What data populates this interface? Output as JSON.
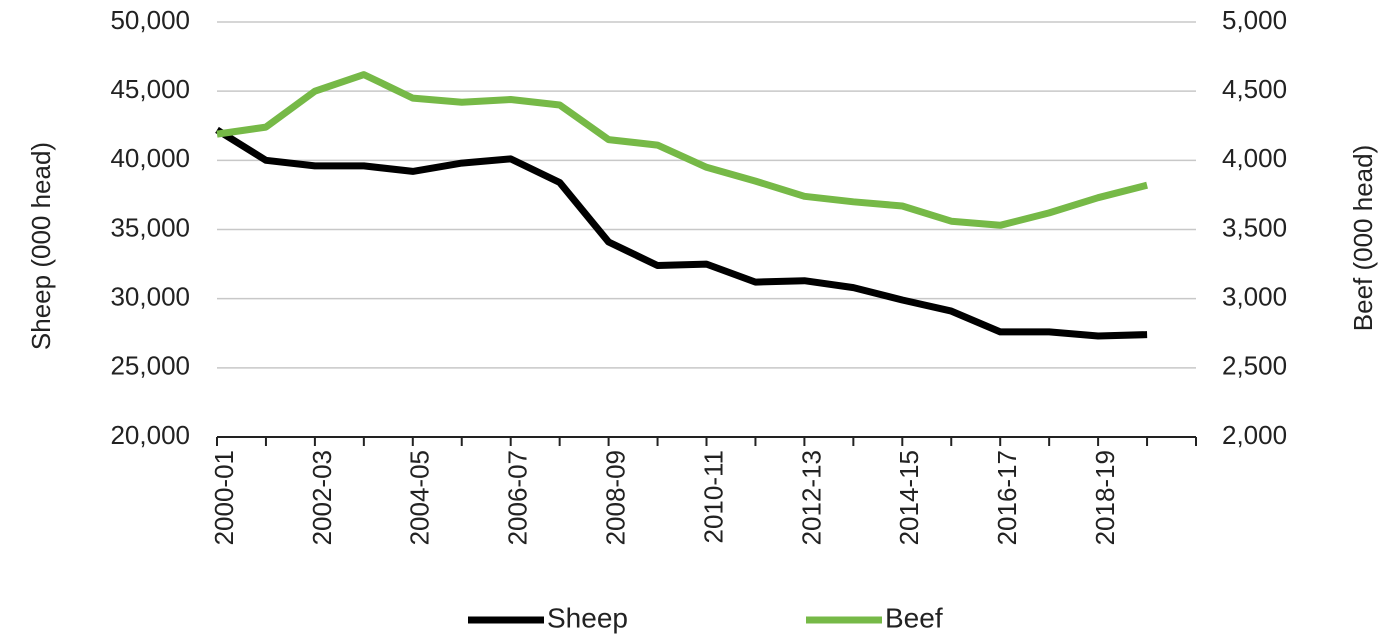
{
  "chart_data": {
    "type": "line",
    "x": [
      "2000-01",
      "2001-02",
      "2002-03",
      "2003-04",
      "2004-05",
      "2005-06",
      "2006-07",
      "2007-08",
      "2008-09",
      "2009-10",
      "2010-11",
      "2011-12",
      "2012-13",
      "2013-14",
      "2014-15",
      "2015-16",
      "2016-17",
      "2017-18",
      "2018-19",
      "2019-20"
    ],
    "x_tick_labels": [
      "2000-01",
      "2002-03",
      "2004-05",
      "2006-07",
      "2008-09",
      "2010-11",
      "2012-13",
      "2014-15",
      "2016-17",
      "2018-19"
    ],
    "series": [
      {
        "name": "Sheep",
        "axis": "left",
        "color": "#000000",
        "values": [
          42200,
          40000,
          39600,
          39600,
          39200,
          39800,
          40100,
          38400,
          34100,
          32400,
          32500,
          31200,
          31300,
          30800,
          29900,
          29100,
          27600,
          27600,
          27300,
          27400
        ]
      },
      {
        "name": "Beef",
        "axis": "right",
        "color": "#76b947",
        "values": [
          4190,
          4240,
          4500,
          4620,
          4450,
          4420,
          4440,
          4400,
          4150,
          4110,
          3950,
          3850,
          3740,
          3700,
          3670,
          3560,
          3530,
          3620,
          3730,
          3820
        ]
      }
    ],
    "ylabel_left": "Sheep (000 head)",
    "ylabel_right": "Beef (000 head)",
    "ylim_left": [
      20000,
      50000
    ],
    "ylim_right": [
      2000,
      5000
    ],
    "yticks_left": [
      "20,000",
      "25,000",
      "30,000",
      "35,000",
      "40,000",
      "45,000",
      "50,000"
    ],
    "yticks_right": [
      "2,000",
      "2,500",
      "3,000",
      "3,500",
      "4,000",
      "4,500",
      "5,000"
    ],
    "grid": true,
    "legend_position": "bottom"
  }
}
